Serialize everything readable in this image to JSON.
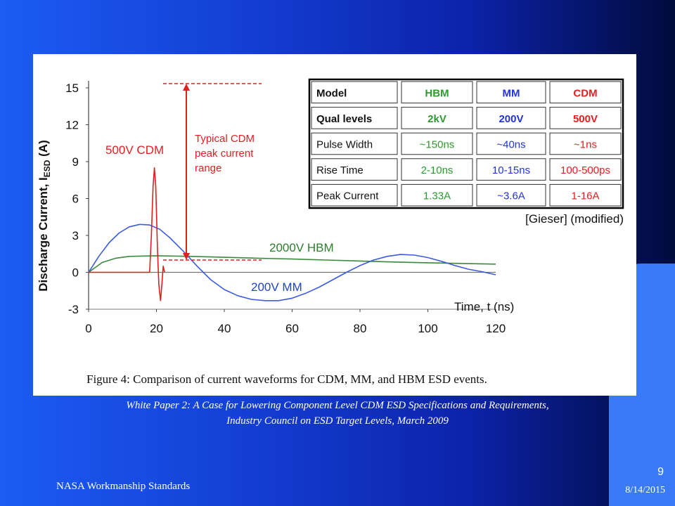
{
  "slide": {
    "caption_line1": "White Paper 2: A Case for Lowering Component Level CDM ESD Specifications and Requirements,",
    "caption_line2": "Industry Council on ESD Target Levels, March 2009",
    "footer_left": "NASA Workmanship Standards",
    "page_number": "9",
    "date": "8/14/2015"
  },
  "colors": {
    "background": "#1440d6",
    "cdm": "#e02020",
    "hbm": "#3a8a3a",
    "mm": "#3c5ce0",
    "annotation": "#e02020",
    "table_green": "#2e9a2e",
    "table_blue": "#2233dd",
    "table_red": "#e02020"
  },
  "chart_data": {
    "type": "line",
    "figure_caption": "Figure 4: Comparison of current waveforms for CDM, MM, and HBM ESD events.",
    "xlabel": "Time, t (ns)",
    "ylabel_main": "Discharge Current, I",
    "ylabel_sub": "ESD",
    "ylabel_unit": " (A)",
    "xlim": [
      0,
      120
    ],
    "ylim": [
      -3,
      15
    ],
    "x_ticks": [
      "0",
      "20",
      "40",
      "60",
      "80",
      "100",
      "120"
    ],
    "y_ticks": [
      "15",
      "12",
      "9",
      "6",
      "3",
      "0",
      "-3"
    ],
    "series": [
      {
        "name": "500V CDM",
        "points": [
          [
            0,
            0
          ],
          [
            18,
            0
          ],
          [
            18.5,
            3
          ],
          [
            19,
            7
          ],
          [
            19.4,
            8.5
          ],
          [
            19.8,
            7
          ],
          [
            20.3,
            2
          ],
          [
            20.7,
            -1
          ],
          [
            21.2,
            -2.3
          ],
          [
            21.6,
            -1
          ],
          [
            22,
            0.5
          ],
          [
            22.4,
            0
          ]
        ]
      },
      {
        "name": "2000V HBM",
        "points": [
          [
            0,
            0
          ],
          [
            4,
            0.8
          ],
          [
            8,
            1.15
          ],
          [
            12,
            1.3
          ],
          [
            20,
            1.35
          ],
          [
            30,
            1.3
          ],
          [
            40,
            1.22
          ],
          [
            50,
            1.15
          ],
          [
            60,
            1.08
          ],
          [
            70,
            1
          ],
          [
            80,
            0.92
          ],
          [
            90,
            0.84
          ],
          [
            100,
            0.78
          ],
          [
            110,
            0.72
          ],
          [
            120,
            0.67
          ]
        ]
      },
      {
        "name": "200V MM",
        "points": [
          [
            0,
            0
          ],
          [
            3,
            1.3
          ],
          [
            6,
            2.4
          ],
          [
            9,
            3.2
          ],
          [
            12,
            3.7
          ],
          [
            15,
            3.9
          ],
          [
            18,
            3.85
          ],
          [
            21,
            3.5
          ],
          [
            24,
            2.8
          ],
          [
            28,
            1.7
          ],
          [
            32,
            0.5
          ],
          [
            36,
            -0.6
          ],
          [
            40,
            -1.4
          ],
          [
            44,
            -1.9
          ],
          [
            48,
            -2.2
          ],
          [
            52,
            -2.3
          ],
          [
            56,
            -2.3
          ],
          [
            60,
            -2.1
          ],
          [
            64,
            -1.7
          ],
          [
            68,
            -1.2
          ],
          [
            72,
            -0.6
          ],
          [
            76,
            0
          ],
          [
            80,
            0.55
          ],
          [
            84,
            1
          ],
          [
            88,
            1.3
          ],
          [
            92,
            1.45
          ],
          [
            96,
            1.4
          ],
          [
            100,
            1.2
          ],
          [
            104,
            0.9
          ],
          [
            108,
            0.55
          ],
          [
            112,
            0.25
          ],
          [
            116,
            0.05
          ],
          [
            120,
            -0.2
          ]
        ]
      }
    ],
    "annotation": {
      "text_lines": [
        "Typical CDM",
        "peak current",
        "range"
      ],
      "range": [
        1,
        16
      ]
    },
    "table": {
      "headers": [
        "Model",
        "HBM",
        "MM",
        "CDM"
      ],
      "rows": [
        [
          "Qual levels",
          "2kV",
          "200V",
          "500V"
        ],
        [
          "Pulse Width",
          "~150ns",
          "~40ns",
          "~1ns"
        ],
        [
          "Rise Time",
          "2-10ns",
          "10-15ns",
          "100-500ps"
        ],
        [
          "Peak Current",
          "1.33A",
          "~3.6A",
          "1-16A"
        ]
      ],
      "note": "[Gieser] (modified)"
    }
  }
}
